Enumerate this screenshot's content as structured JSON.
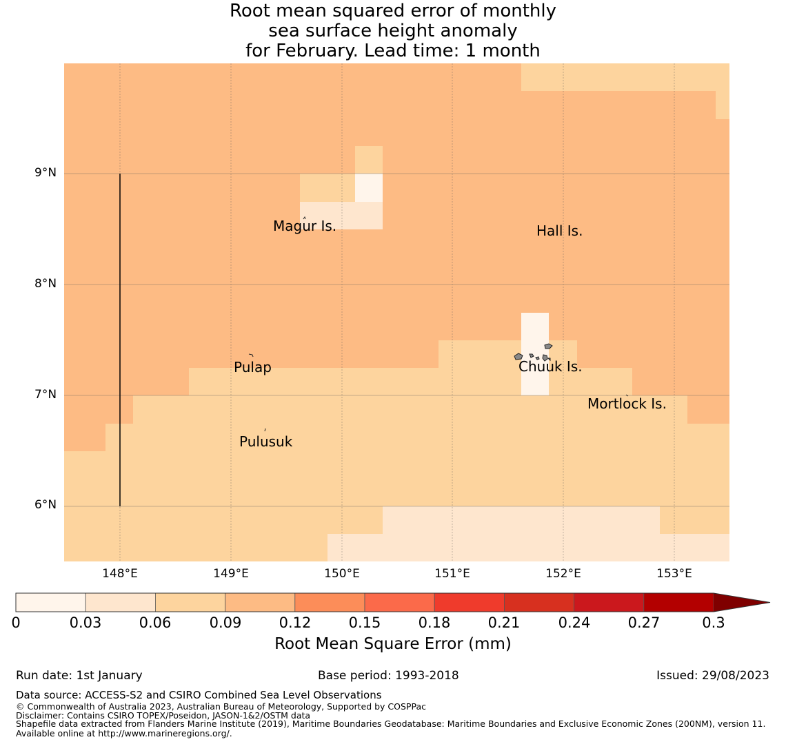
{
  "title": {
    "line1": "Root mean squared error of monthly",
    "line2": "sea surface height anomaly",
    "line3": "for February. Lead time: 1 month"
  },
  "map": {
    "lat_labels": [
      "9°N",
      "8°N",
      "7°N",
      "6°N"
    ],
    "lon_labels": [
      "148°E",
      "149°E",
      "150°E",
      "151°E",
      "152°E",
      "153°E"
    ],
    "places": {
      "magur": "Magur Is.",
      "hall": "Hall Is.",
      "pulap": "Pulap",
      "chuuk": "Chuuk Is.",
      "mortlock": "Mortlock Is.",
      "pulusuk": "Pulusuk"
    }
  },
  "colorbar": {
    "ticks": [
      "0",
      "0.03",
      "0.06",
      "0.09",
      "0.12",
      "0.15",
      "0.18",
      "0.21",
      "0.24",
      "0.27",
      "0.3"
    ],
    "colors": [
      "#fff5eb",
      "#fee6ce",
      "#fdd49e",
      "#fdbb84",
      "#fc8d59",
      "#fb6a4a",
      "#ef3b2c",
      "#d7301f",
      "#cb181d",
      "#b30000",
      "#7f0000"
    ],
    "label": "Root Mean Square Error (mm)"
  },
  "footer": {
    "run_date": "Run date: 1st January",
    "base_period": "Base period: 1993-2018",
    "issued": "Issued: 29/08/2023",
    "data_source": "Data source: ACCESS-S2 and CSIRO Combined Sea Level Observations",
    "copyright": "© Commonwealth of Australia 2023, Australian Bureau of Meteorology, Supported by COSPPac",
    "disclaimer": "Disclaimer: Contains CSIRO TOPEX/Poseidon, JASON-1&2/OSTM data",
    "shapefile": "Shapefile data extracted from Flanders Marine Institute (2019), Maritime Boundaries Geodatabase: Maritime Boundaries and Exclusive Economic Zones (200NM), version 11. Available online at http://www.marineregions.org/."
  }
}
